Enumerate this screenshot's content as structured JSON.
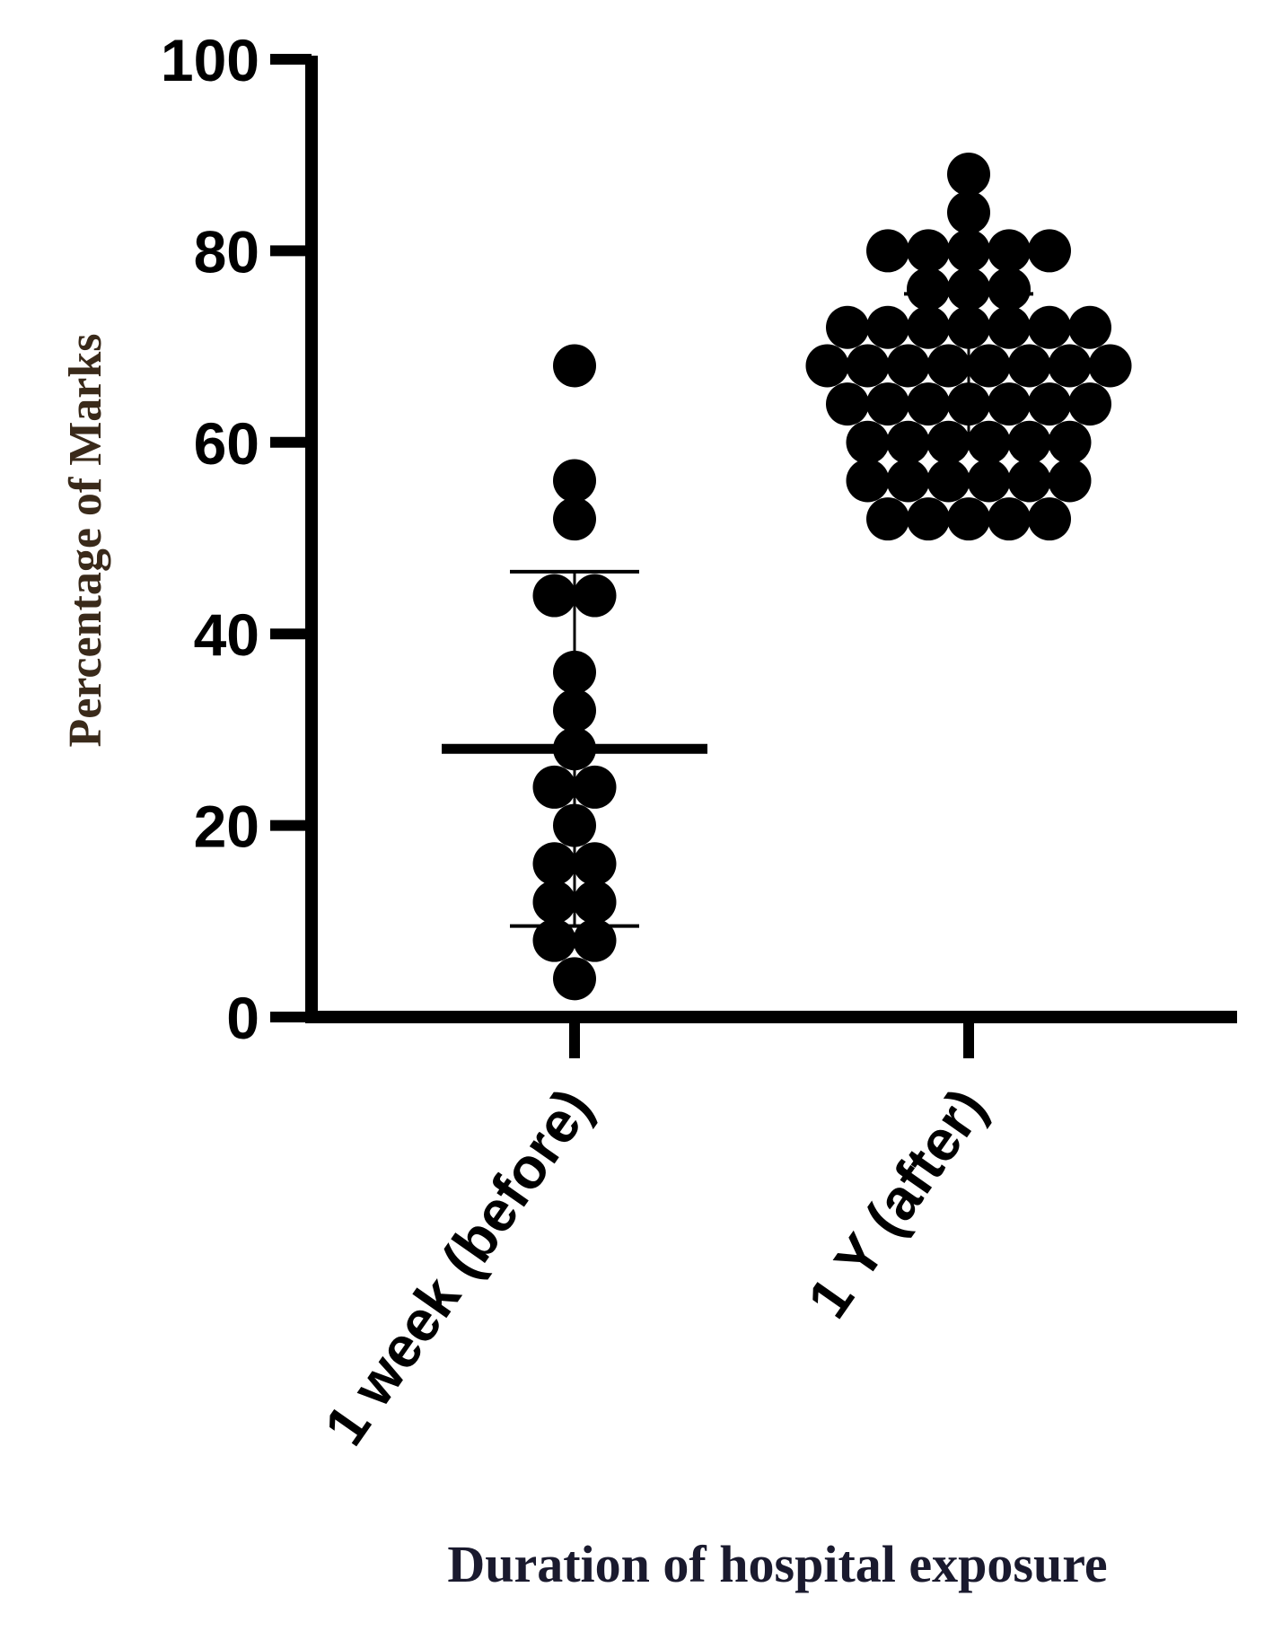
{
  "chart_data": {
    "type": "scatter",
    "title": "",
    "xlabel": "Duration of hospital exposure",
    "ylabel": "Percentage of Marks",
    "ylim": [
      0,
      100
    ],
    "yticks": [
      "0",
      "20",
      "40",
      "60",
      "80",
      "100"
    ],
    "categories": [
      "1 week (before)",
      "1 Y (after)"
    ],
    "grid": false,
    "marker_color": "#000000",
    "groups": [
      {
        "category": "1 week (before)",
        "mean": 28,
        "sd_low": 9.5,
        "sd_high": 46.5,
        "points": [
          68,
          56,
          52,
          44,
          44,
          36,
          32,
          28,
          24,
          24,
          20,
          16,
          16,
          12,
          12,
          8,
          8,
          4
        ]
      },
      {
        "category": "1 Y (after)",
        "mean": 68,
        "sd_low": 60,
        "sd_high": 75.5,
        "points": [
          88,
          84,
          80,
          80,
          80,
          80,
          80,
          76,
          76,
          76,
          72,
          72,
          72,
          72,
          72,
          72,
          72,
          68,
          68,
          68,
          68,
          68,
          68,
          68,
          68,
          64,
          64,
          64,
          64,
          64,
          64,
          64,
          60,
          60,
          60,
          60,
          60,
          60,
          56,
          56,
          56,
          56,
          56,
          56,
          52,
          52,
          52,
          52,
          52
        ]
      }
    ]
  }
}
